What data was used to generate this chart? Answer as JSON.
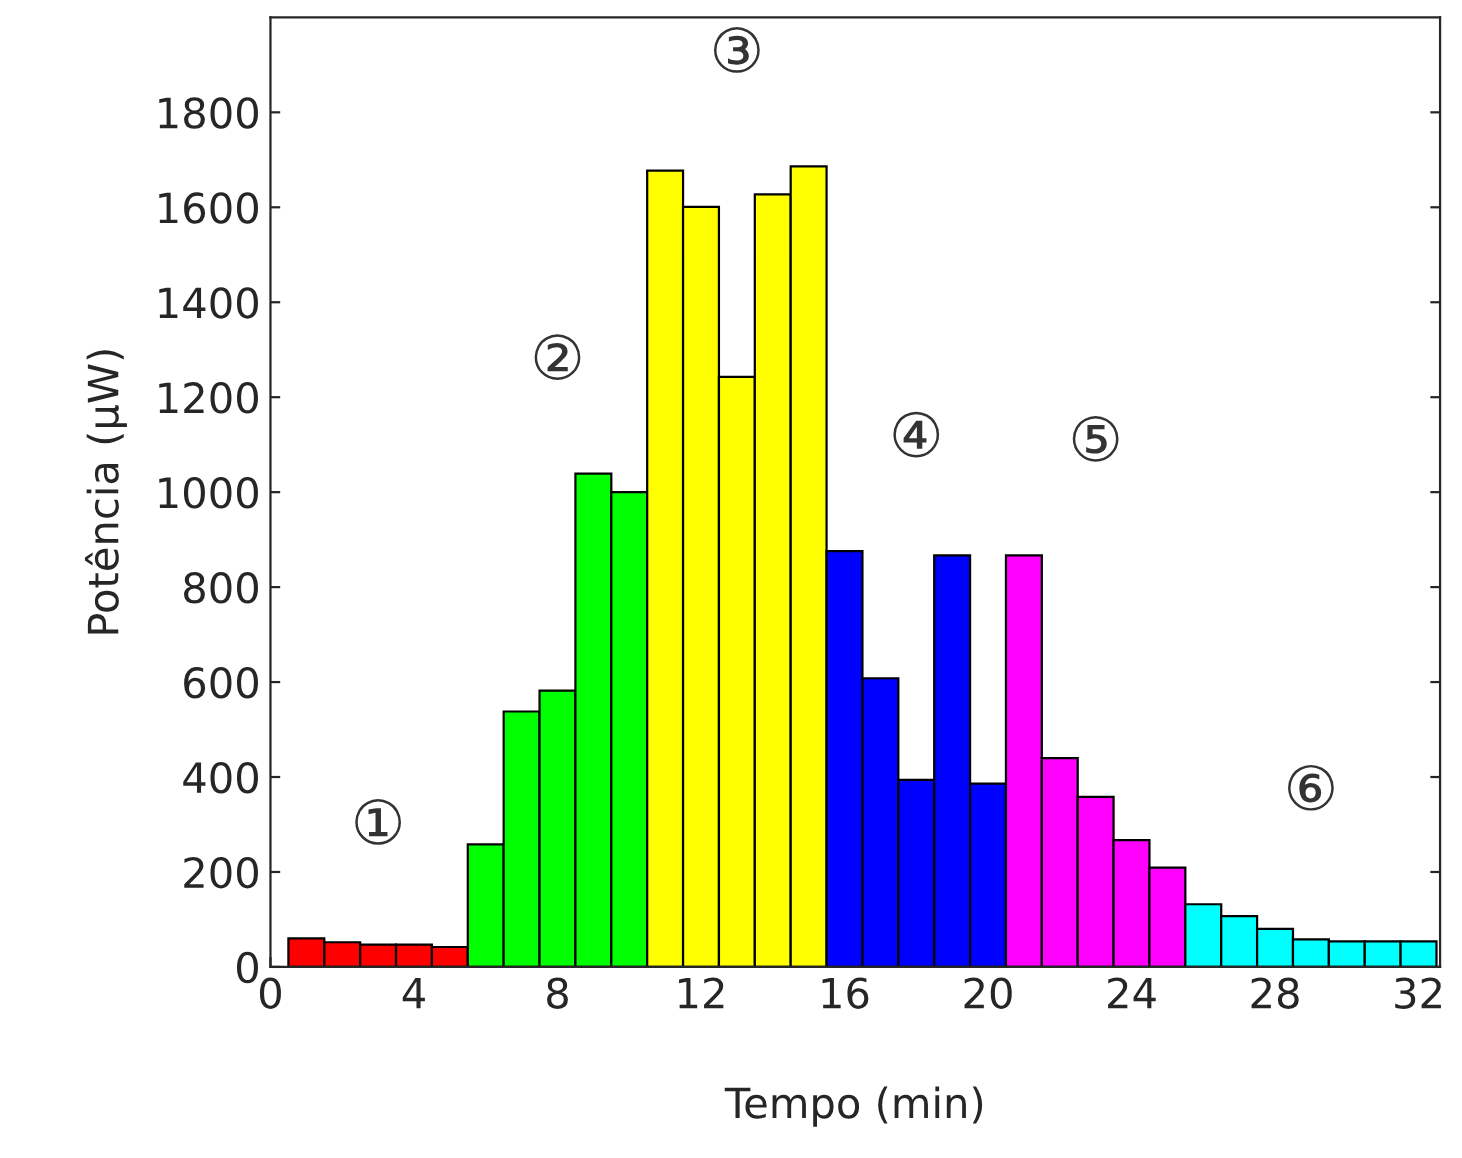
{
  "chart_data": {
    "type": "bar",
    "xlabel": "Tempo (min)",
    "ylabel": "Potência (µW)",
    "x": [
      1,
      2,
      3,
      4,
      5,
      6,
      7,
      8,
      9,
      10,
      11,
      12,
      13,
      14,
      15,
      16,
      17,
      18,
      19,
      20,
      21,
      22,
      23,
      24,
      25,
      26,
      27,
      28,
      29,
      30,
      31,
      32
    ],
    "values": [
      60,
      52,
      47,
      47,
      42,
      258,
      538,
      582,
      1039,
      1000,
      1677,
      1601,
      1243,
      1627,
      1686,
      876,
      608,
      394,
      867,
      386,
      867,
      440,
      358,
      267,
      209,
      132,
      107,
      80,
      58,
      54,
      54,
      54
    ],
    "colors": [
      "#ff0000",
      "#ff0000",
      "#ff0000",
      "#ff0000",
      "#ff0000",
      "#00ff00",
      "#00ff00",
      "#00ff00",
      "#00ff00",
      "#00ff00",
      "#ffff00",
      "#ffff00",
      "#ffff00",
      "#ffff00",
      "#ffff00",
      "#0000ff",
      "#0000ff",
      "#0000ff",
      "#0000ff",
      "#0000ff",
      "#ff00ff",
      "#ff00ff",
      "#ff00ff",
      "#ff00ff",
      "#ff00ff",
      "#00ffff",
      "#00ffff",
      "#00ffff",
      "#00ffff",
      "#00ffff",
      "#00ffff",
      "#00ffff"
    ],
    "xlim": [
      0,
      32.6
    ],
    "xticks": [
      0,
      4,
      8,
      12,
      16,
      20,
      24,
      28,
      32
    ],
    "ylim": [
      0,
      2000
    ],
    "yticks": [
      0,
      200,
      400,
      600,
      800,
      1000,
      1200,
      1400,
      1600,
      1800
    ],
    "grid": false,
    "annotations": [
      "①",
      "②",
      "③",
      "④",
      "⑤",
      "⑥"
    ]
  }
}
